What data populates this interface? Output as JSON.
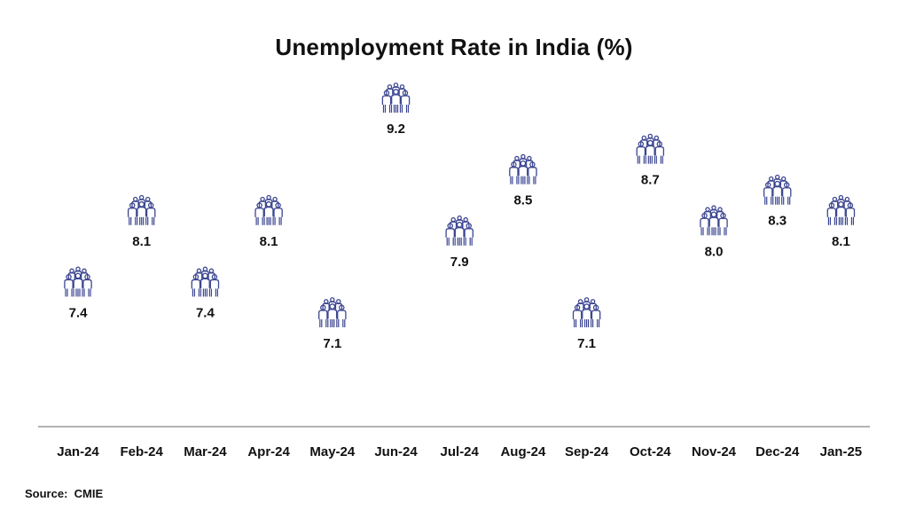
{
  "chart_data": {
    "type": "scatter",
    "title": "Unemployment Rate in India (%)",
    "categories": [
      "Jan-24",
      "Feb-24",
      "Mar-24",
      "Apr-24",
      "May-24",
      "Jun-24",
      "Jul-24",
      "Aug-24",
      "Sep-24",
      "Oct-24",
      "Nov-24",
      "Dec-24",
      "Jan-25"
    ],
    "values": [
      7.4,
      8.1,
      7.4,
      8.1,
      7.1,
      9.2,
      7.9,
      8.5,
      7.1,
      8.7,
      8.0,
      8.3,
      8.1
    ],
    "value_labels": [
      "7.4",
      "8.1",
      "7.4",
      "8.1",
      "7.1",
      "9.2",
      "7.9",
      "8.5",
      "7.1",
      "8.7",
      "8.0",
      "8.3",
      "8.1"
    ],
    "marker_icon": "people-group-icon",
    "marker_color": "#3c4691",
    "axis_color": "#9a9a9a",
    "xlabel": "",
    "ylabel": "",
    "grid": false
  },
  "source": {
    "label": "Source:",
    "value": "CMIE"
  }
}
